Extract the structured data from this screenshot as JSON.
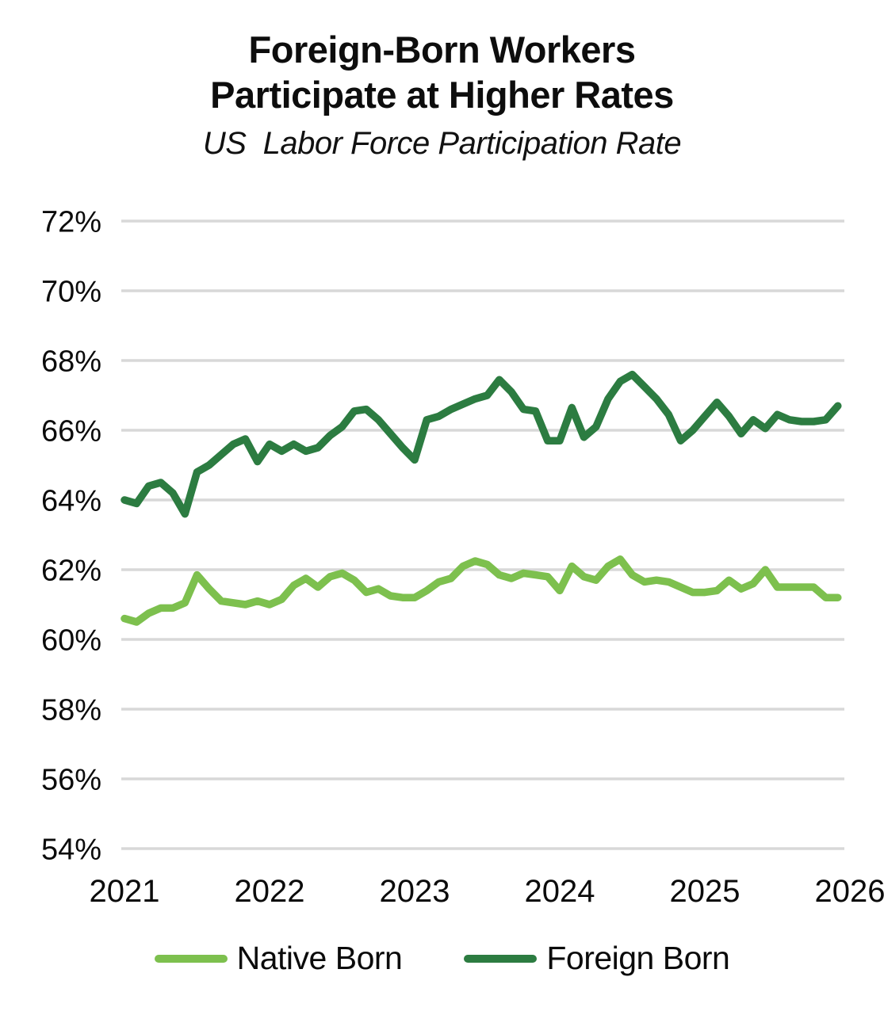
{
  "header": {
    "title_line1": "Foreign-Born Workers",
    "title_line2": "Participate at Higher Rates",
    "subtitle": "US  Labor Force Participation Rate"
  },
  "chart_data": {
    "type": "line",
    "title": "Foreign-Born Workers Participate at Higher Rates",
    "subtitle": "US Labor Force Participation Rate",
    "x_unit": "month",
    "x_range": "2021-01 to 2025-12",
    "x_tick_labels": [
      "2021",
      "2022",
      "2023",
      "2024",
      "2025",
      "2026"
    ],
    "y_tick_labels": [
      "72%",
      "70%",
      "68%",
      "66%",
      "64%",
      "62%",
      "60%",
      "58%",
      "56%",
      "54%"
    ],
    "ylim": [
      54,
      72
    ],
    "y_tick_step": 2,
    "grid": "horizontal-only",
    "gridline_color": "#d8d8d8",
    "legend_position": "bottom",
    "series": [
      {
        "name": "Native Born",
        "color": "#7DC04E",
        "values": [
          60.6,
          60.5,
          60.75,
          60.9,
          60.9,
          61.05,
          61.85,
          61.45,
          61.1,
          61.05,
          61.0,
          61.1,
          61.0,
          61.15,
          61.55,
          61.75,
          61.5,
          61.8,
          61.9,
          61.7,
          61.35,
          61.45,
          61.25,
          61.2,
          61.2,
          61.4,
          61.65,
          61.75,
          62.1,
          62.25,
          62.15,
          61.85,
          61.75,
          61.9,
          61.85,
          61.8,
          61.4,
          62.1,
          61.8,
          61.7,
          62.1,
          62.3,
          61.85,
          61.65,
          61.7,
          61.65,
          61.5,
          61.35,
          61.35,
          61.4,
          61.7,
          61.45,
          61.6,
          62.0,
          61.5,
          61.5,
          61.5,
          61.5,
          61.2,
          61.2
        ]
      },
      {
        "name": "Foreign Born",
        "color": "#2C7C41",
        "values": [
          64.0,
          63.9,
          64.4,
          64.5,
          64.2,
          63.6,
          64.8,
          65.0,
          65.3,
          65.6,
          65.75,
          65.1,
          65.6,
          65.4,
          65.6,
          65.4,
          65.5,
          65.85,
          66.1,
          66.55,
          66.6,
          66.3,
          65.9,
          65.5,
          65.15,
          66.3,
          66.4,
          66.6,
          66.75,
          66.9,
          67.0,
          67.45,
          67.1,
          66.6,
          66.55,
          65.7,
          65.7,
          66.65,
          65.8,
          66.1,
          66.9,
          67.4,
          67.6,
          67.25,
          66.9,
          66.45,
          65.7,
          66.0,
          66.4,
          66.8,
          66.4,
          65.9,
          66.3,
          66.05,
          66.45,
          66.3,
          66.25,
          66.25,
          66.3,
          66.7
        ]
      }
    ]
  },
  "legend": {
    "items": [
      {
        "label": "Native Born"
      },
      {
        "label": "Foreign Born"
      }
    ]
  }
}
